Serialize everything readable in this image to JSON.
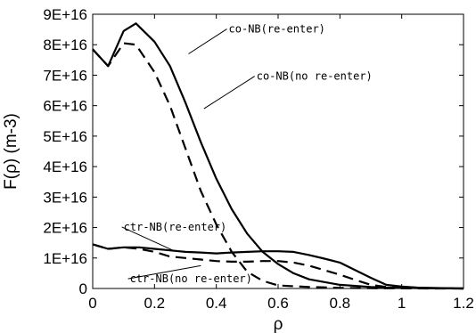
{
  "chart_data": {
    "type": "line",
    "xlabel": "ρ",
    "ylabel": "F(ρ)   (m-3)",
    "xlim": [
      0,
      1.2
    ],
    "ylim": [
      0,
      9e+16
    ],
    "xticks": [
      0,
      0.2,
      0.4,
      0.6,
      0.8,
      1,
      1.2
    ],
    "xtick_labels": [
      "0",
      "0.2",
      "0.4",
      "0.6",
      "0.8",
      "1",
      "1.2"
    ],
    "yticks": [
      0,
      1e+16,
      2e+16,
      3e+16,
      4e+16,
      5e+16,
      6e+16,
      7e+16,
      8e+16,
      9e+16
    ],
    "ytick_labels": [
      "0",
      "1E+16",
      "2E+16",
      "3E+16",
      "4E+16",
      "5E+16",
      "6E+16",
      "7E+16",
      "8E+16",
      "9E+16"
    ],
    "grid": false,
    "series": [
      {
        "name": "co-NB(re-enter)",
        "style": "solid",
        "color": "#000000",
        "x": [
          0,
          0.05,
          0.1,
          0.14,
          0.2,
          0.25,
          0.3,
          0.35,
          0.4,
          0.45,
          0.5,
          0.55,
          0.6,
          0.65,
          0.7,
          0.8,
          0.9,
          0.95,
          1.0,
          1.1,
          1.2
        ],
        "y": [
          7.85e+16,
          7.3e+16,
          8.45e+16,
          8.7e+16,
          8.1e+16,
          7.3e+16,
          6.1e+16,
          4.8e+16,
          3.6e+16,
          2.6e+16,
          1.8e+16,
          1.2e+16,
          8000000000000000.0,
          5000000000000000.0,
          3000000000000000.0,
          1200000000000000.0,
          500000000000000.0,
          300000000000000.0,
          200000000000000.0,
          100000000000000.0,
          0
        ]
      },
      {
        "name": "co-NB(no re-enter)",
        "style": "dashed",
        "color": "#000000",
        "x": [
          0,
          0.05,
          0.1,
          0.14,
          0.2,
          0.25,
          0.3,
          0.35,
          0.4,
          0.45,
          0.5,
          0.55,
          0.6,
          0.7,
          0.8,
          0.9,
          1.0,
          1.1,
          1.2
        ],
        "y": [
          7.85e+16,
          7.3e+16,
          8.05e+16,
          8e+16,
          7.1e+16,
          6e+16,
          4.6e+16,
          3.2e+16,
          2.1e+16,
          1.2e+16,
          5500000000000000.0,
          2500000000000000.0,
          1000000000000000.0,
          500000000000000.0,
          200000000000000.0,
          100000000000000.0,
          50000000000000.0,
          0,
          0
        ]
      },
      {
        "name": "ctr-NB(re-enter)",
        "style": "solid",
        "color": "#000000",
        "x": [
          0,
          0.05,
          0.1,
          0.15,
          0.2,
          0.25,
          0.3,
          0.35,
          0.4,
          0.45,
          0.5,
          0.55,
          0.6,
          0.65,
          0.7,
          0.75,
          0.8,
          0.85,
          0.9,
          0.95,
          1.0,
          1.05,
          1.1,
          1.15,
          1.2
        ],
        "y": [
          1.45e+16,
          1.3e+16,
          1.35e+16,
          1.35e+16,
          1.3e+16,
          1.25e+16,
          1.2e+16,
          1.18e+16,
          1.15e+16,
          1.18e+16,
          1.2e+16,
          1.22e+16,
          1.22e+16,
          1.2e+16,
          1.1e+16,
          9800000000000000.0,
          8500000000000000.0,
          6000000000000000.0,
          3500000000000000.0,
          1200000000000000.0,
          600000000000000.0,
          300000000000000.0,
          200000000000000.0,
          100000000000000.0,
          0
        ]
      },
      {
        "name": "ctr-NB(no re-enter)",
        "style": "dashed",
        "color": "#000000",
        "x": [
          0,
          0.05,
          0.1,
          0.15,
          0.2,
          0.25,
          0.3,
          0.35,
          0.4,
          0.45,
          0.5,
          0.55,
          0.6,
          0.65,
          0.7,
          0.75,
          0.8,
          0.85,
          0.9,
          0.95,
          1.0,
          1.1,
          1.2
        ],
        "y": [
          1.45e+16,
          1.3e+16,
          1.35e+16,
          1.3e+16,
          1.2e+16,
          1.05e+16,
          1e+16,
          9500000000000000.0,
          9000000000000000.0,
          8800000000000000.0,
          8800000000000000.0,
          9000000000000000.0,
          9000000000000000.0,
          8500000000000000.0,
          7500000000000000.0,
          6000000000000000.0,
          4500000000000000.0,
          2800000000000000.0,
          1200000000000000.0,
          500000000000000.0,
          200000000000000.0,
          100000000000000.0,
          0
        ]
      }
    ],
    "annotations": [
      {
        "text": "co-NB(re-enter)",
        "x": 0.44,
        "y": 8.4e+16,
        "target_x": 0.31,
        "target_y": 7.7e+16
      },
      {
        "text": "co-NB(no re-enter)",
        "x": 0.53,
        "y": 6.85e+16,
        "target_x": 0.36,
        "target_y": 5.9e+16
      },
      {
        "text": "ctr-NB(re-enter)",
        "x": 0.1,
        "y": 1.9e+16,
        "target_x": 0.26,
        "target_y": 1.25e+16
      },
      {
        "text": "ctr-NB(no re-enter)",
        "x": 0.12,
        "y": 2000000000000000.0,
        "target_x": 0.35,
        "target_y": 7500000000000000.0
      }
    ]
  }
}
